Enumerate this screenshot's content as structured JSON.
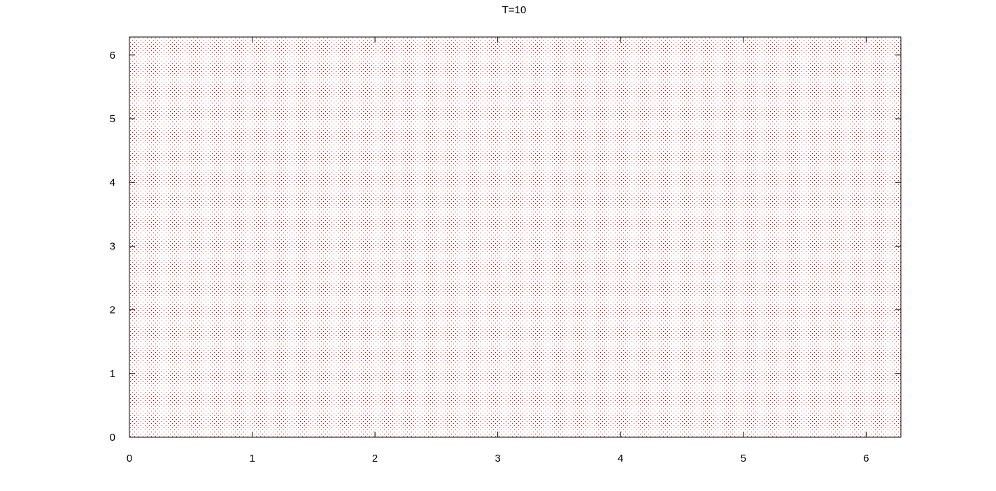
{
  "chart_data": {
    "type": "scatter",
    "title": "T=10",
    "xlabel": "",
    "ylabel": "",
    "xlim": [
      0,
      6.283
    ],
    "ylim": [
      0,
      6.283
    ],
    "x_ticks": [
      "0",
      "1",
      "2",
      "3",
      "4",
      "5",
      "6"
    ],
    "y_ticks": [
      "0",
      "1",
      "2",
      "3",
      "4",
      "5",
      "6"
    ],
    "grid": false,
    "legend": "none",
    "series": [
      {
        "marker": "dot",
        "color": "#cc0000",
        "distribution": "lattice of points uniformly filling [0, 2π] × [0, 2π]",
        "point_spacing_x": 0.0157,
        "point_spacing_y": 0.0393
      }
    ]
  }
}
